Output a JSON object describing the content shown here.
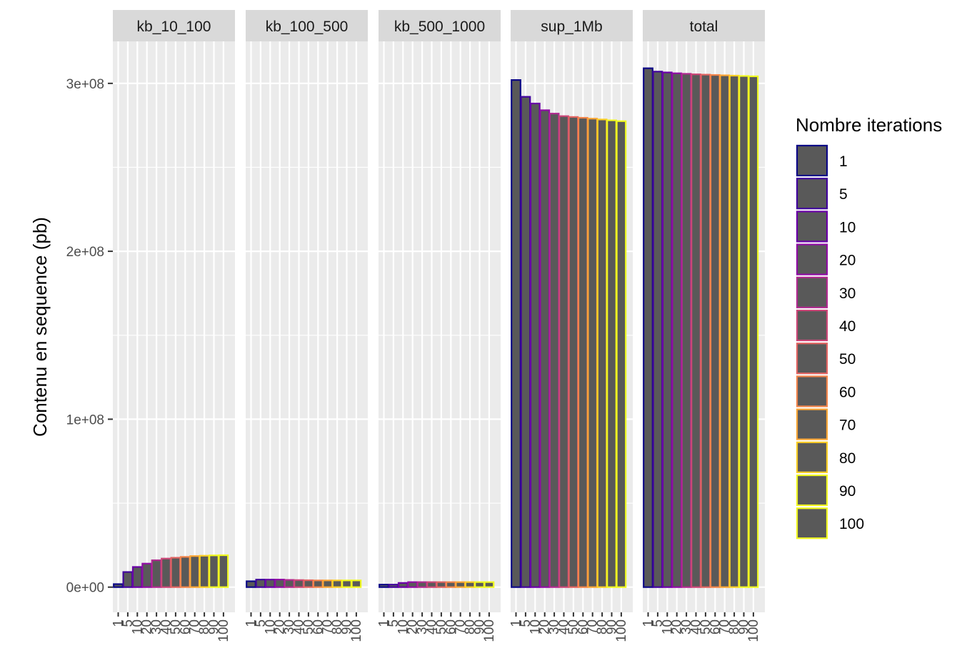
{
  "chart_data": {
    "type": "bar",
    "ylabel": "Contenu en sequence (pb)",
    "ylim": [
      -15000000,
      325000000
    ],
    "y_ticks": [
      0,
      100000000,
      200000000,
      300000000
    ],
    "y_tick_labels": [
      "0e+00",
      "1e+08",
      "2e+08",
      "3e+08"
    ],
    "categories": [
      "1",
      "5",
      "10",
      "20",
      "30",
      "40",
      "50",
      "60",
      "70",
      "80",
      "90",
      "100"
    ],
    "grid": true,
    "legend": {
      "title": "Nombre iterations",
      "placement": "right",
      "colors": [
        "#0d0887",
        "#41049d",
        "#6a00a8",
        "#8f0da4",
        "#b12a90",
        "#cc4778",
        "#e16462",
        "#f2844b",
        "#fca636",
        "#fcce25",
        "#f0f921",
        "#f0f921"
      ]
    },
    "bar_fill": "#595959",
    "panels": [
      {
        "name": "kb_10_100",
        "values": [
          1800000,
          9000000,
          12000000,
          14000000,
          16000000,
          17000000,
          17500000,
          18000000,
          18500000,
          18700000,
          18900000,
          19000000
        ]
      },
      {
        "name": "kb_100_500",
        "values": [
          3500000,
          4500000,
          4500000,
          4500000,
          4300000,
          4200000,
          4100000,
          4000000,
          4000000,
          4000000,
          4000000,
          4000000
        ]
      },
      {
        "name": "kb_500_1000",
        "values": [
          1500000,
          1500000,
          2500000,
          3000000,
          3000000,
          3000000,
          3000000,
          3000000,
          3000000,
          3000000,
          3000000,
          3000000
        ]
      },
      {
        "name": "sup_1Mb",
        "values": [
          302000000,
          292000000,
          288000000,
          284000000,
          282000000,
          280500000,
          280000000,
          279500000,
          279000000,
          278500000,
          278000000,
          277500000
        ]
      },
      {
        "name": "total",
        "values": [
          309000000,
          307000000,
          306500000,
          306000000,
          305700000,
          305400000,
          305200000,
          305000000,
          304800000,
          304600000,
          304400000,
          304200000
        ]
      }
    ]
  }
}
